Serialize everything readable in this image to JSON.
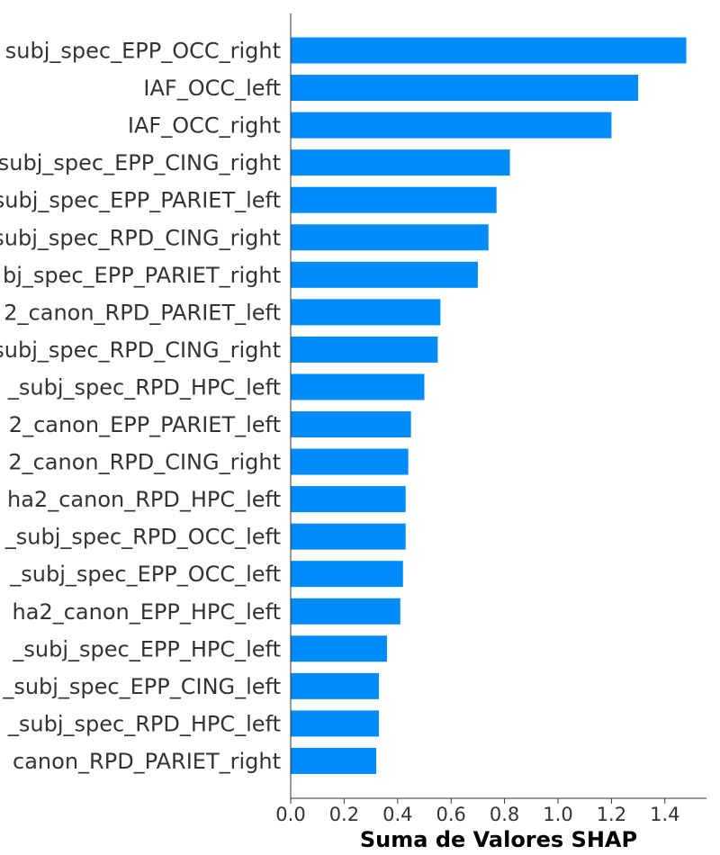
{
  "chart_data": {
    "type": "bar",
    "orientation": "horizontal",
    "title": "",
    "xlabel": "Suma de Valores SHAP",
    "ylabel": "",
    "xlim": [
      0,
      1.55
    ],
    "xticks": [
      0.0,
      0.2,
      0.4,
      0.6,
      0.8,
      1.0,
      1.2,
      1.4
    ],
    "xtick_labels": [
      "0.0",
      "0.2",
      "0.4",
      "0.6",
      "0.8",
      "1.0",
      "1.2",
      "1.4"
    ],
    "grid": false,
    "bar_color": "#008bfb",
    "text_color": "#333333",
    "categories": [
      "subj_spec_EPP_OCC_right",
      "IAF_OCC_left",
      "IAF_OCC_right",
      "subj_spec_EPP_CING_right",
      "subj_spec_EPP_PARIET_left",
      "subj_spec_RPD_CING_right",
      "bj_spec_EPP_PARIET_right",
      "2_canon_RPD_PARIET_left",
      "subj_spec_RPD_CING_right",
      "_subj_spec_RPD_HPC_left",
      "2_canon_EPP_PARIET_left",
      "2_canon_RPD_CING_right",
      "ha2_canon_RPD_HPC_left",
      "_subj_spec_RPD_OCC_left",
      "_subj_spec_EPP_OCC_left",
      "ha2_canon_EPP_HPC_left",
      "_subj_spec_EPP_HPC_left",
      "_subj_spec_EPP_CING_left",
      "_subj_spec_RPD_HPC_left",
      "canon_RPD_PARIET_right"
    ],
    "values": [
      1.48,
      1.3,
      1.2,
      0.82,
      0.77,
      0.74,
      0.7,
      0.56,
      0.55,
      0.5,
      0.45,
      0.44,
      0.43,
      0.43,
      0.42,
      0.41,
      0.36,
      0.33,
      0.33,
      0.32
    ]
  }
}
